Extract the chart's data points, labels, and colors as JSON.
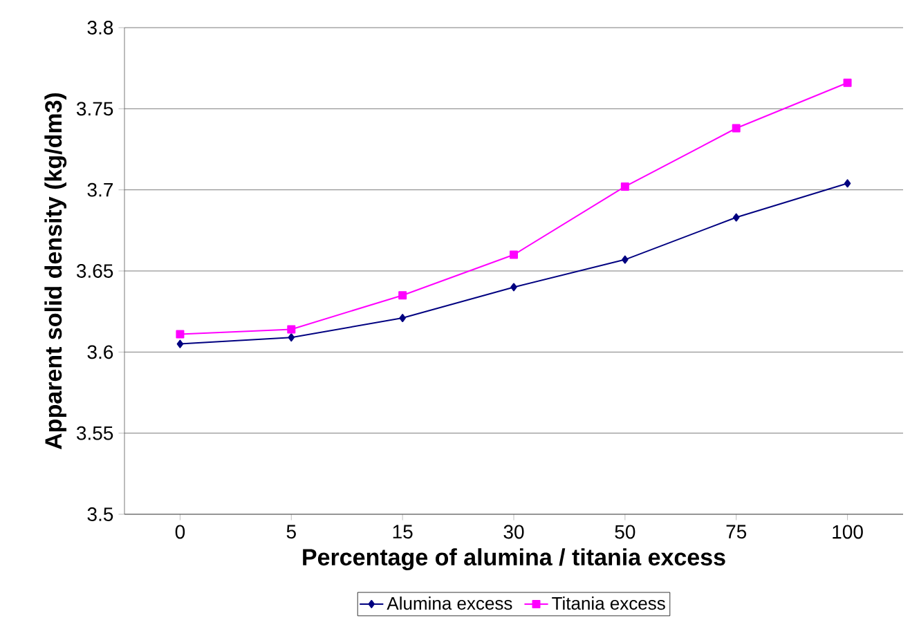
{
  "chart_data": {
    "type": "line",
    "xlabel": "Percentage of alumina / titania excess",
    "ylabel": "Apparent solid density (kg/dm3)",
    "categories": [
      "0",
      "5",
      "15",
      "30",
      "50",
      "75",
      "100"
    ],
    "series": [
      {
        "name": "Alumina excess",
        "color": "#000080",
        "marker": "diamond",
        "values": [
          3.605,
          3.609,
          3.621,
          3.64,
          3.657,
          3.683,
          3.704
        ]
      },
      {
        "name": "Titania excess",
        "color": "#ff00ff",
        "marker": "square",
        "values": [
          3.611,
          3.614,
          3.635,
          3.66,
          3.702,
          3.738,
          3.766
        ]
      }
    ],
    "ylim": [
      3.5,
      3.8
    ],
    "yticks": [
      3.5,
      3.55,
      3.6,
      3.65,
      3.7,
      3.75,
      3.8
    ],
    "grid": "y",
    "legend": "bottom"
  }
}
